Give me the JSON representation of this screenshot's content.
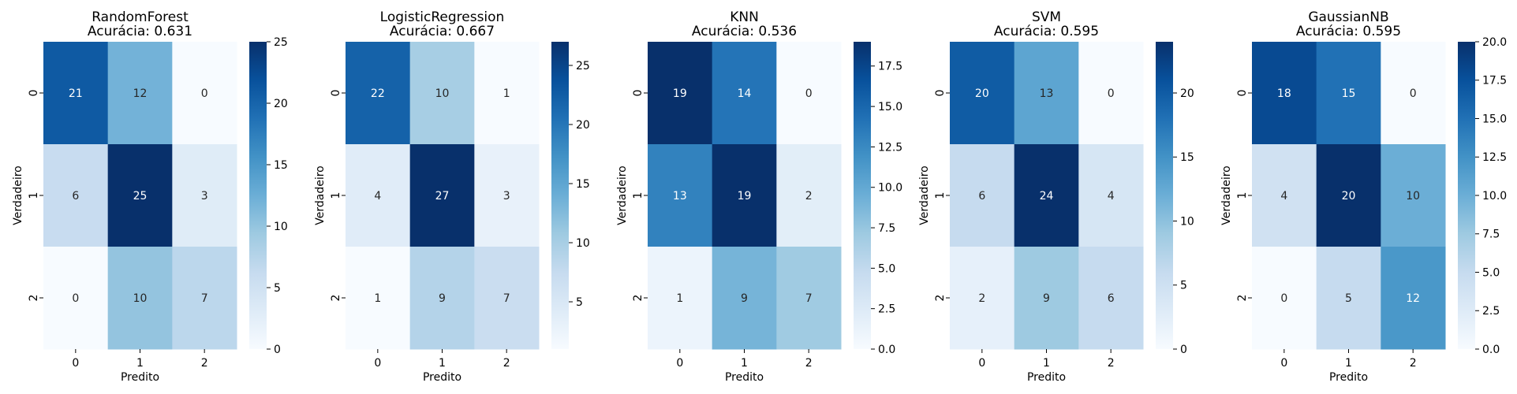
{
  "chart_data": [
    {
      "type": "heatmap",
      "title_line1": "RandomForest",
      "title_line2": "Acurácia: 0.631",
      "xlabel": "Predito",
      "ylabel": "Verdadeiro",
      "x_categories": [
        "0",
        "1",
        "2"
      ],
      "y_categories": [
        "0",
        "1",
        "2"
      ],
      "values": [
        [
          21,
          12,
          0
        ],
        [
          6,
          25,
          3
        ],
        [
          0,
          10,
          7
        ]
      ],
      "colormap": "Blues",
      "vmin": 0,
      "vmax": 25,
      "colorbar_ticks": [
        "0",
        "5",
        "10",
        "15",
        "20",
        "25"
      ],
      "grid": false
    },
    {
      "type": "heatmap",
      "title_line1": "LogisticRegression",
      "title_line2": "Acurácia: 0.667",
      "xlabel": "Predito",
      "ylabel": "Verdadeiro",
      "x_categories": [
        "0",
        "1",
        "2"
      ],
      "y_categories": [
        "0",
        "1",
        "2"
      ],
      "values": [
        [
          22,
          10,
          1
        ],
        [
          4,
          27,
          3
        ],
        [
          1,
          9,
          7
        ]
      ],
      "colormap": "Blues",
      "vmin": 1,
      "vmax": 27,
      "colorbar_ticks": [
        "5",
        "10",
        "15",
        "20",
        "25"
      ],
      "grid": false
    },
    {
      "type": "heatmap",
      "title_line1": "KNN",
      "title_line2": "Acurácia: 0.536",
      "xlabel": "Predito",
      "ylabel": "Verdadeiro",
      "x_categories": [
        "0",
        "1",
        "2"
      ],
      "y_categories": [
        "0",
        "1",
        "2"
      ],
      "values": [
        [
          19,
          14,
          0
        ],
        [
          13,
          19,
          2
        ],
        [
          1,
          9,
          7
        ]
      ],
      "colormap": "Blues",
      "vmin": 0,
      "vmax": 19,
      "colorbar_ticks": [
        "0.0",
        "2.5",
        "5.0",
        "7.5",
        "10.0",
        "12.5",
        "15.0",
        "17.5"
      ],
      "grid": false
    },
    {
      "type": "heatmap",
      "title_line1": "SVM",
      "title_line2": "Acurácia: 0.595",
      "xlabel": "Predito",
      "ylabel": "Verdadeiro",
      "x_categories": [
        "0",
        "1",
        "2"
      ],
      "y_categories": [
        "0",
        "1",
        "2"
      ],
      "values": [
        [
          20,
          13,
          0
        ],
        [
          6,
          24,
          4
        ],
        [
          2,
          9,
          6
        ]
      ],
      "colormap": "Blues",
      "vmin": 0,
      "vmax": 24,
      "colorbar_ticks": [
        "0",
        "5",
        "10",
        "15",
        "20"
      ],
      "grid": false
    },
    {
      "type": "heatmap",
      "title_line1": "GaussianNB",
      "title_line2": "Acurácia: 0.595",
      "xlabel": "Predito",
      "ylabel": "Verdadeiro",
      "x_categories": [
        "0",
        "1",
        "2"
      ],
      "y_categories": [
        "0",
        "1",
        "2"
      ],
      "values": [
        [
          18,
          15,
          0
        ],
        [
          4,
          20,
          10
        ],
        [
          0,
          5,
          12
        ]
      ],
      "colormap": "Blues",
      "vmin": 0,
      "vmax": 20,
      "colorbar_ticks": [
        "0.0",
        "2.5",
        "5.0",
        "7.5",
        "10.0",
        "12.5",
        "15.0",
        "17.5",
        "20.0"
      ],
      "grid": false
    }
  ]
}
